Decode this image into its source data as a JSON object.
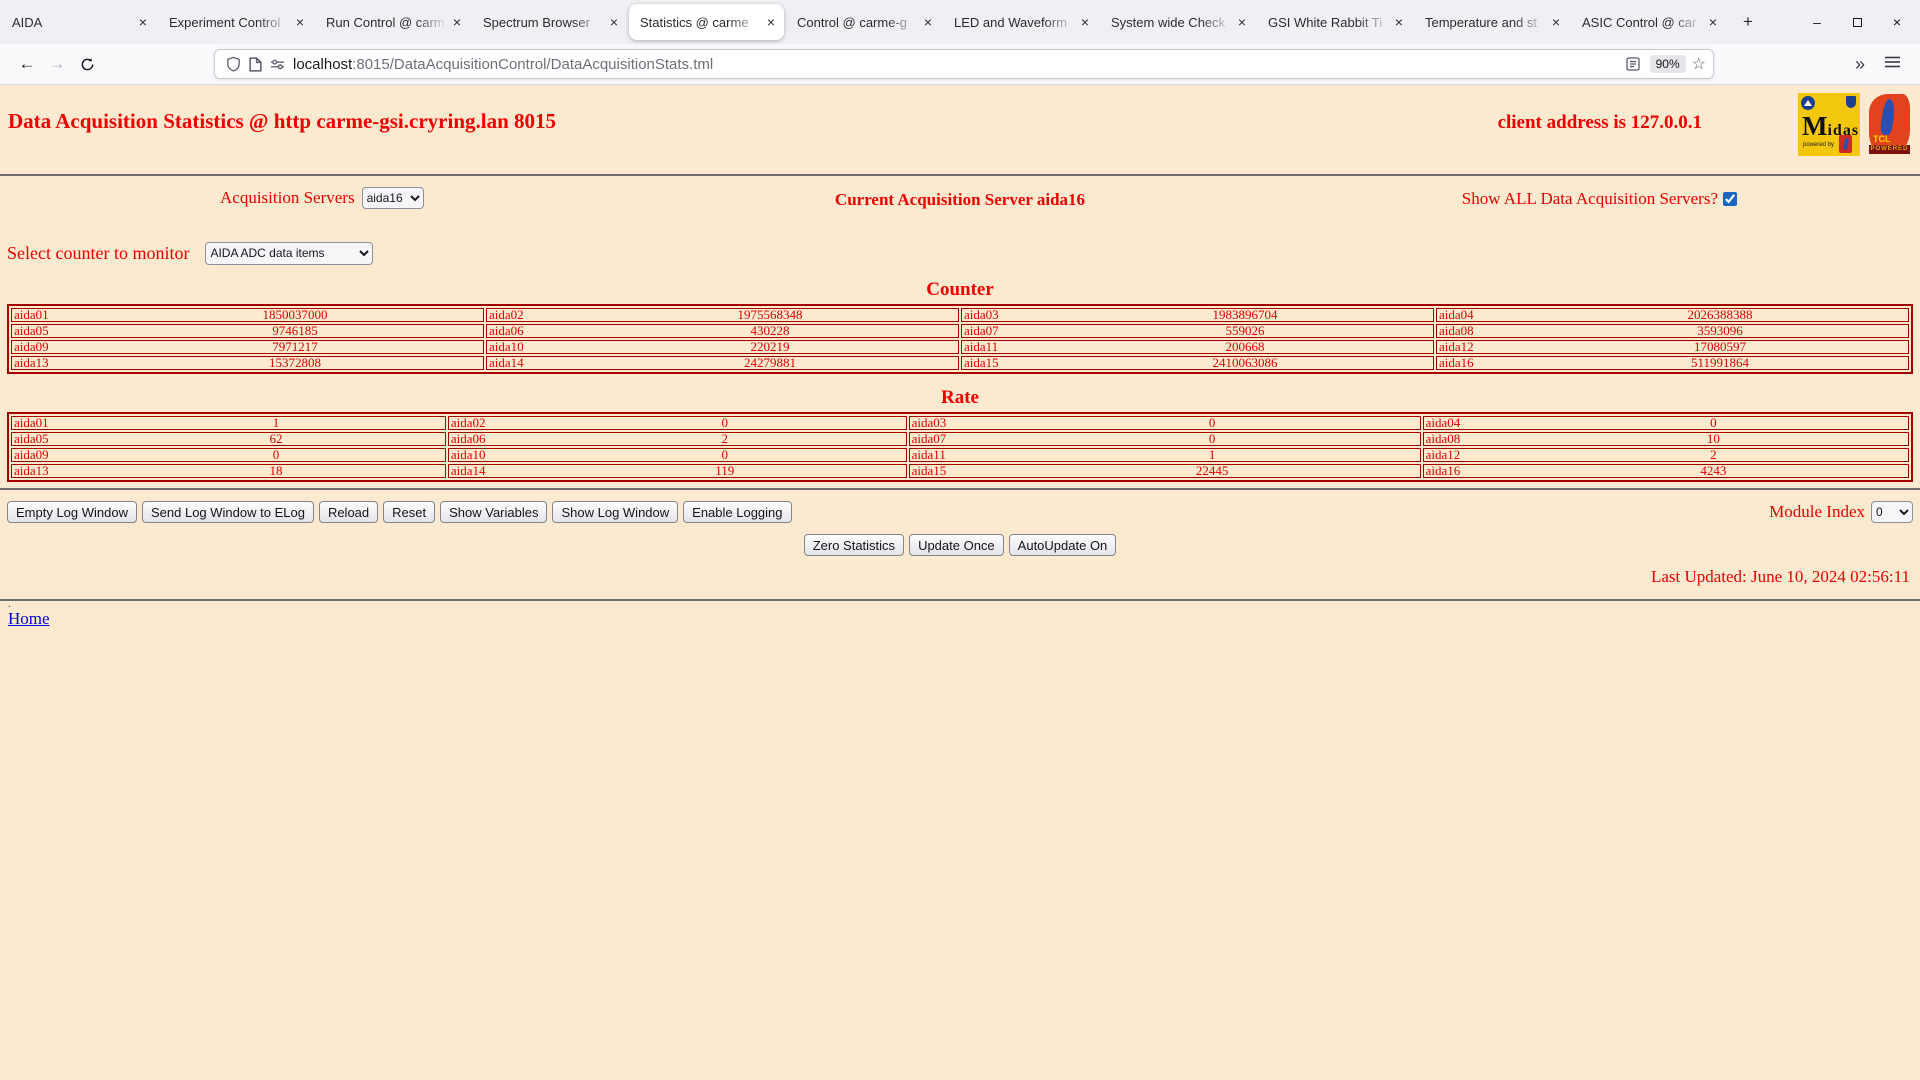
{
  "browser": {
    "window_controls": {
      "minimize": "–",
      "close": "×"
    },
    "new_tab_glyph": "+",
    "tab_close_glyph": "×",
    "tabs": [
      {
        "label": "AIDA",
        "active": false
      },
      {
        "label": "Experiment Control",
        "active": false
      },
      {
        "label": "Run Control @ carm",
        "active": false
      },
      {
        "label": "Spectrum Browser",
        "active": false
      },
      {
        "label": "Statistics @ carme",
        "active": true
      },
      {
        "label": "Control @ carme-g",
        "active": false
      },
      {
        "label": "LED and Waveform",
        "active": false
      },
      {
        "label": "System wide Check",
        "active": false
      },
      {
        "label": "GSI White Rabbit Ti",
        "active": false
      },
      {
        "label": "Temperature and st",
        "active": false
      },
      {
        "label": "ASIC Control @ car",
        "active": false
      }
    ],
    "nav": {
      "back_glyph": "←",
      "forward_glyph": "→"
    },
    "urlbar": {
      "host": "localhost",
      "path": ":8015/DataAcquisitionControl/DataAcquisitionStats.tml",
      "zoom_badge": "90%",
      "star_glyph": "☆",
      "overflow_glyph": "»"
    }
  },
  "page": {
    "title": "Data Acquisition Statistics @ http carme-gsi.cryring.lan 8015",
    "client_address": "client address is 127.0.0.1",
    "acquisition_servers_label": "Acquisition Servers",
    "acquisition_server_selected": "aida16",
    "current_server_text": "Current Acquisition Server aida16",
    "show_all_label": "Show ALL Data Acquisition Servers?",
    "show_all_checked": true,
    "select_counter_label": "Select counter to monitor",
    "counter_select_value": "AIDA ADC data items",
    "buttons": [
      "Empty Log Window",
      "Send Log Window to ELog",
      "Reload",
      "Reset",
      "Show Variables",
      "Show Log Window",
      "Enable Logging"
    ],
    "module_index_label": "Module Index",
    "module_index_value": "0",
    "update_buttons": [
      "Zero Statistics",
      "Update Once",
      "AutoUpdate On"
    ],
    "last_updated": "Last Updated: June 10, 2024 02:56:11",
    "dot": ".",
    "home_link": "Home"
  },
  "counter_table": {
    "heading": "Counter",
    "rows": [
      [
        [
          "aida01",
          "1850037000"
        ],
        [
          "aida02",
          "1975568348"
        ],
        [
          "aida03",
          "1983896704"
        ],
        [
          "aida04",
          "2026388388"
        ]
      ],
      [
        [
          "aida05",
          "9746185"
        ],
        [
          "aida06",
          "430228"
        ],
        [
          "aida07",
          "559026"
        ],
        [
          "aida08",
          "3593096"
        ]
      ],
      [
        [
          "aida09",
          "7971217"
        ],
        [
          "aida10",
          "220219"
        ],
        [
          "aida11",
          "200668"
        ],
        [
          "aida12",
          "17080597"
        ]
      ],
      [
        [
          "aida13",
          "15372808"
        ],
        [
          "aida14",
          "24279881"
        ],
        [
          "aida15",
          "2410063086"
        ],
        [
          "aida16",
          "511991864"
        ]
      ]
    ]
  },
  "rate_table": {
    "heading": "Rate",
    "rows": [
      [
        [
          "aida01",
          "1"
        ],
        [
          "aida02",
          "0"
        ],
        [
          "aida03",
          "0"
        ],
        [
          "aida04",
          "0"
        ]
      ],
      [
        [
          "aida05",
          "62"
        ],
        [
          "aida06",
          "2"
        ],
        [
          "aida07",
          "0"
        ],
        [
          "aida08",
          "10"
        ]
      ],
      [
        [
          "aida09",
          "0"
        ],
        [
          "aida10",
          "0"
        ],
        [
          "aida11",
          "1"
        ],
        [
          "aida12",
          "2"
        ]
      ],
      [
        [
          "aida13",
          "18"
        ],
        [
          "aida14",
          "119"
        ],
        [
          "aida15",
          "22445"
        ],
        [
          "aida16",
          "4243"
        ]
      ]
    ]
  }
}
